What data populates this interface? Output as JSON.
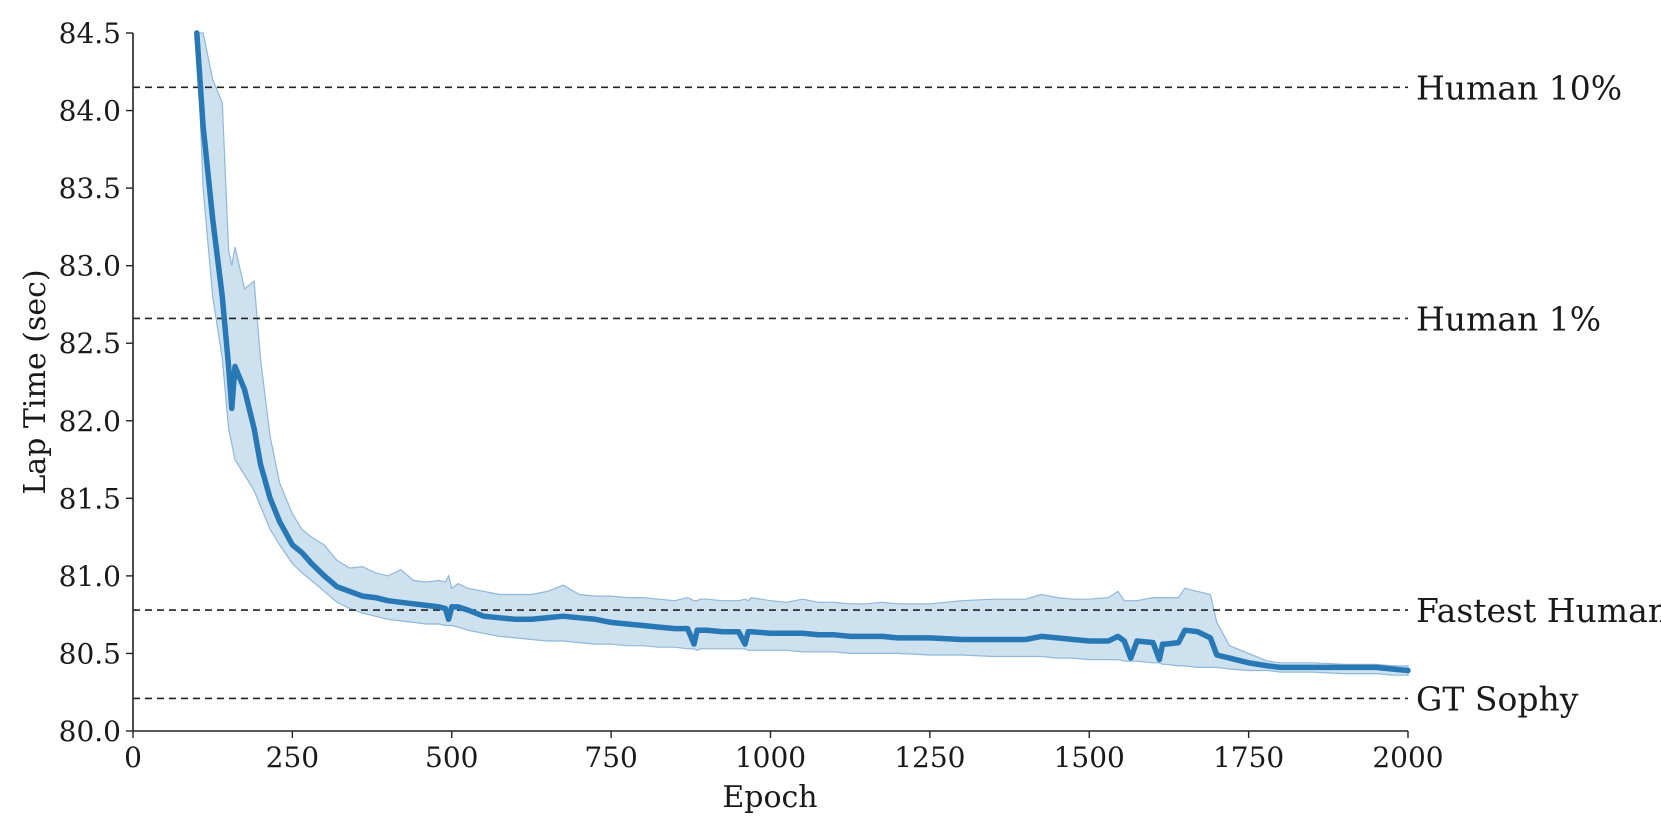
{
  "chart_data": {
    "type": "line",
    "title": "",
    "xlabel": "Epoch",
    "ylabel": "Lap Time (sec)",
    "xlim": [
      0,
      2000
    ],
    "ylim": [
      80.0,
      84.5
    ],
    "x_ticks": [
      "0",
      "250",
      "500",
      "750",
      "1000",
      "1250",
      "1500",
      "1750",
      "2000"
    ],
    "y_ticks": [
      "80.0",
      "80.5",
      "81.0",
      "81.5",
      "82.0",
      "82.5",
      "83.0",
      "83.5",
      "84.0",
      "84.5"
    ],
    "grid": false,
    "colors": {
      "line": "#2878b5",
      "band": "#a6c8e2",
      "band_edge": "#8fb8da",
      "reference": "#222222"
    },
    "reference_lines": [
      {
        "label": "Human 10%",
        "y": 84.15
      },
      {
        "label": "Human 1%",
        "y": 82.66
      },
      {
        "label": "Fastest Human",
        "y": 80.78
      },
      {
        "label": "GT Sophy",
        "y": 80.21
      }
    ],
    "series": [
      {
        "x": [
          100,
          110,
          125,
          140,
          150,
          155,
          160,
          175,
          190,
          200,
          215,
          230,
          250,
          265,
          280,
          300,
          320,
          340,
          360,
          380,
          400,
          420,
          440,
          460,
          480,
          490,
          495,
          500,
          510,
          525,
          550,
          575,
          600,
          625,
          650,
          675,
          700,
          725,
          750,
          775,
          800,
          825,
          850,
          870,
          880,
          885,
          890,
          900,
          925,
          950,
          960,
          965,
          970,
          1000,
          1025,
          1050,
          1075,
          1100,
          1125,
          1150,
          1175,
          1200,
          1250,
          1300,
          1350,
          1400,
          1425,
          1450,
          1475,
          1500,
          1530,
          1545,
          1555,
          1565,
          1575,
          1600,
          1610,
          1615,
          1620,
          1640,
          1650,
          1670,
          1690,
          1700,
          1720,
          1750,
          1780,
          1800,
          1850,
          1900,
          1950,
          1975,
          2000
        ],
        "mean": [
          84.5,
          83.9,
          83.3,
          82.8,
          82.35,
          82.08,
          82.35,
          82.2,
          81.95,
          81.72,
          81.5,
          81.35,
          81.2,
          81.15,
          81.08,
          81.0,
          80.93,
          80.9,
          80.87,
          80.86,
          80.84,
          80.83,
          80.82,
          80.81,
          80.8,
          80.79,
          80.72,
          80.8,
          80.8,
          80.78,
          80.74,
          80.73,
          80.72,
          80.72,
          80.73,
          80.74,
          80.73,
          80.72,
          80.7,
          80.69,
          80.68,
          80.67,
          80.66,
          80.66,
          80.56,
          80.65,
          80.65,
          80.65,
          80.64,
          80.64,
          80.56,
          80.64,
          80.64,
          80.63,
          80.63,
          80.63,
          80.62,
          80.62,
          80.61,
          80.61,
          80.61,
          80.6,
          80.6,
          80.59,
          80.59,
          80.59,
          80.61,
          80.6,
          80.59,
          80.58,
          80.58,
          80.61,
          80.58,
          80.47,
          80.58,
          80.57,
          80.46,
          80.56,
          80.56,
          80.57,
          80.65,
          80.64,
          80.6,
          80.49,
          80.47,
          80.44,
          80.42,
          80.41,
          80.41,
          80.41,
          80.41,
          80.4,
          80.39
        ],
        "lower": [
          84.5,
          83.5,
          82.8,
          82.4,
          81.95,
          81.85,
          81.75,
          81.65,
          81.55,
          81.45,
          81.3,
          81.2,
          81.08,
          81.02,
          80.97,
          80.9,
          80.83,
          80.79,
          80.76,
          80.74,
          80.72,
          80.71,
          80.7,
          80.69,
          80.69,
          80.68,
          80.68,
          80.68,
          80.67,
          80.65,
          80.63,
          80.61,
          80.6,
          80.59,
          80.58,
          80.58,
          80.57,
          80.56,
          80.56,
          80.55,
          80.55,
          80.54,
          80.54,
          80.53,
          80.53,
          80.52,
          80.53,
          80.53,
          80.53,
          80.53,
          80.53,
          80.52,
          80.52,
          80.52,
          80.52,
          80.51,
          80.51,
          80.51,
          80.5,
          80.5,
          80.5,
          80.5,
          80.49,
          80.49,
          80.48,
          80.48,
          80.48,
          80.47,
          80.47,
          80.46,
          80.46,
          80.46,
          80.45,
          80.45,
          80.45,
          80.44,
          80.44,
          80.43,
          80.43,
          80.42,
          80.42,
          80.41,
          80.41,
          80.41,
          80.4,
          80.39,
          80.39,
          80.38,
          80.38,
          80.37,
          80.37,
          80.36,
          80.36
        ],
        "upper": [
          84.5,
          84.5,
          84.2,
          84.05,
          83.1,
          83.0,
          83.12,
          82.85,
          82.9,
          82.4,
          81.9,
          81.6,
          81.4,
          81.3,
          81.25,
          81.2,
          81.1,
          81.05,
          81.06,
          81.02,
          81.0,
          81.04,
          80.97,
          80.96,
          80.97,
          80.96,
          81.0,
          80.92,
          80.95,
          80.92,
          80.9,
          80.88,
          80.88,
          80.88,
          80.9,
          80.94,
          80.88,
          80.87,
          80.87,
          80.86,
          80.86,
          80.85,
          80.84,
          80.86,
          80.84,
          80.84,
          80.85,
          80.85,
          80.84,
          80.84,
          80.85,
          80.84,
          80.86,
          80.84,
          80.83,
          80.85,
          80.83,
          80.83,
          80.82,
          80.82,
          80.83,
          80.82,
          80.82,
          80.84,
          80.85,
          80.85,
          80.88,
          80.86,
          80.85,
          80.85,
          80.86,
          80.9,
          80.84,
          80.84,
          80.84,
          80.86,
          80.86,
          80.86,
          80.86,
          80.86,
          80.92,
          80.9,
          80.88,
          80.7,
          80.55,
          80.5,
          80.45,
          80.44,
          80.44,
          80.43,
          80.43,
          80.42,
          80.42
        ]
      }
    ]
  }
}
